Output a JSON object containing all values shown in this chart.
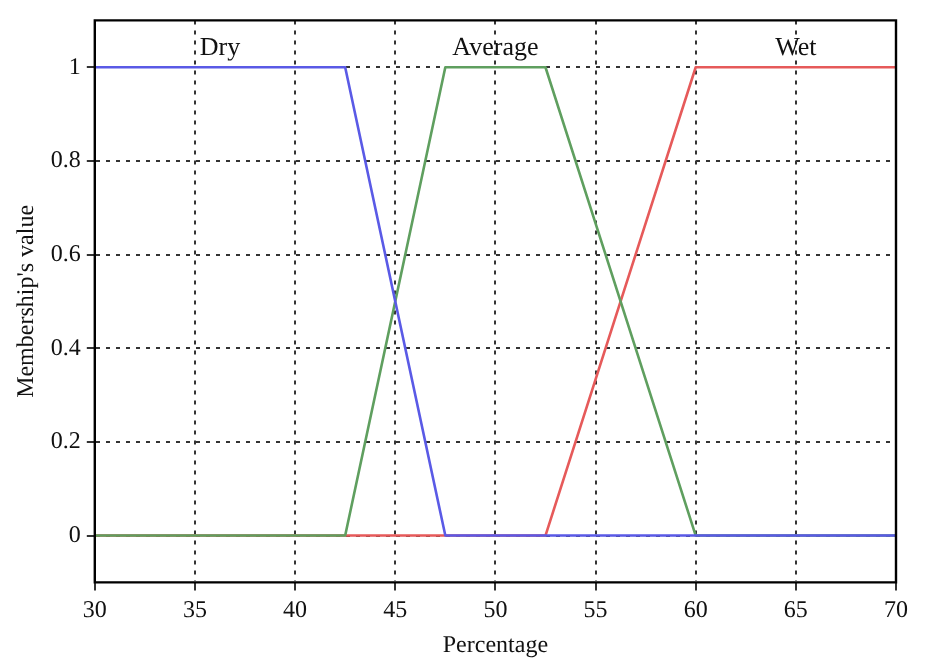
{
  "chart_data": {
    "type": "line",
    "xlabel": "Percentage",
    "ylabel": "Membership's value",
    "xlim": [
      30,
      70
    ],
    "ylim": [
      -0.1,
      1.1
    ],
    "xticks": [
      30,
      35,
      40,
      45,
      50,
      55,
      60,
      65,
      70
    ],
    "yticks": [
      0,
      0.2,
      0.4,
      0.6,
      0.8,
      1
    ],
    "grid": true,
    "legend": false,
    "marker": "none",
    "line_style": "solid",
    "series": [
      {
        "name": "Dry",
        "color": "#5a5ae6",
        "x": [
          30,
          42.5,
          47.5,
          70
        ],
        "values": [
          1,
          1,
          0,
          0
        ]
      },
      {
        "name": "Average",
        "color": "#5f9f5f",
        "x": [
          30,
          42.5,
          47.5,
          52.5,
          60,
          70
        ],
        "values": [
          0,
          0,
          1,
          1,
          0,
          0
        ]
      },
      {
        "name": "Wet",
        "color": "#e65a5a",
        "x": [
          30,
          52.5,
          60,
          70
        ],
        "values": [
          0,
          0,
          1,
          1
        ]
      }
    ]
  }
}
